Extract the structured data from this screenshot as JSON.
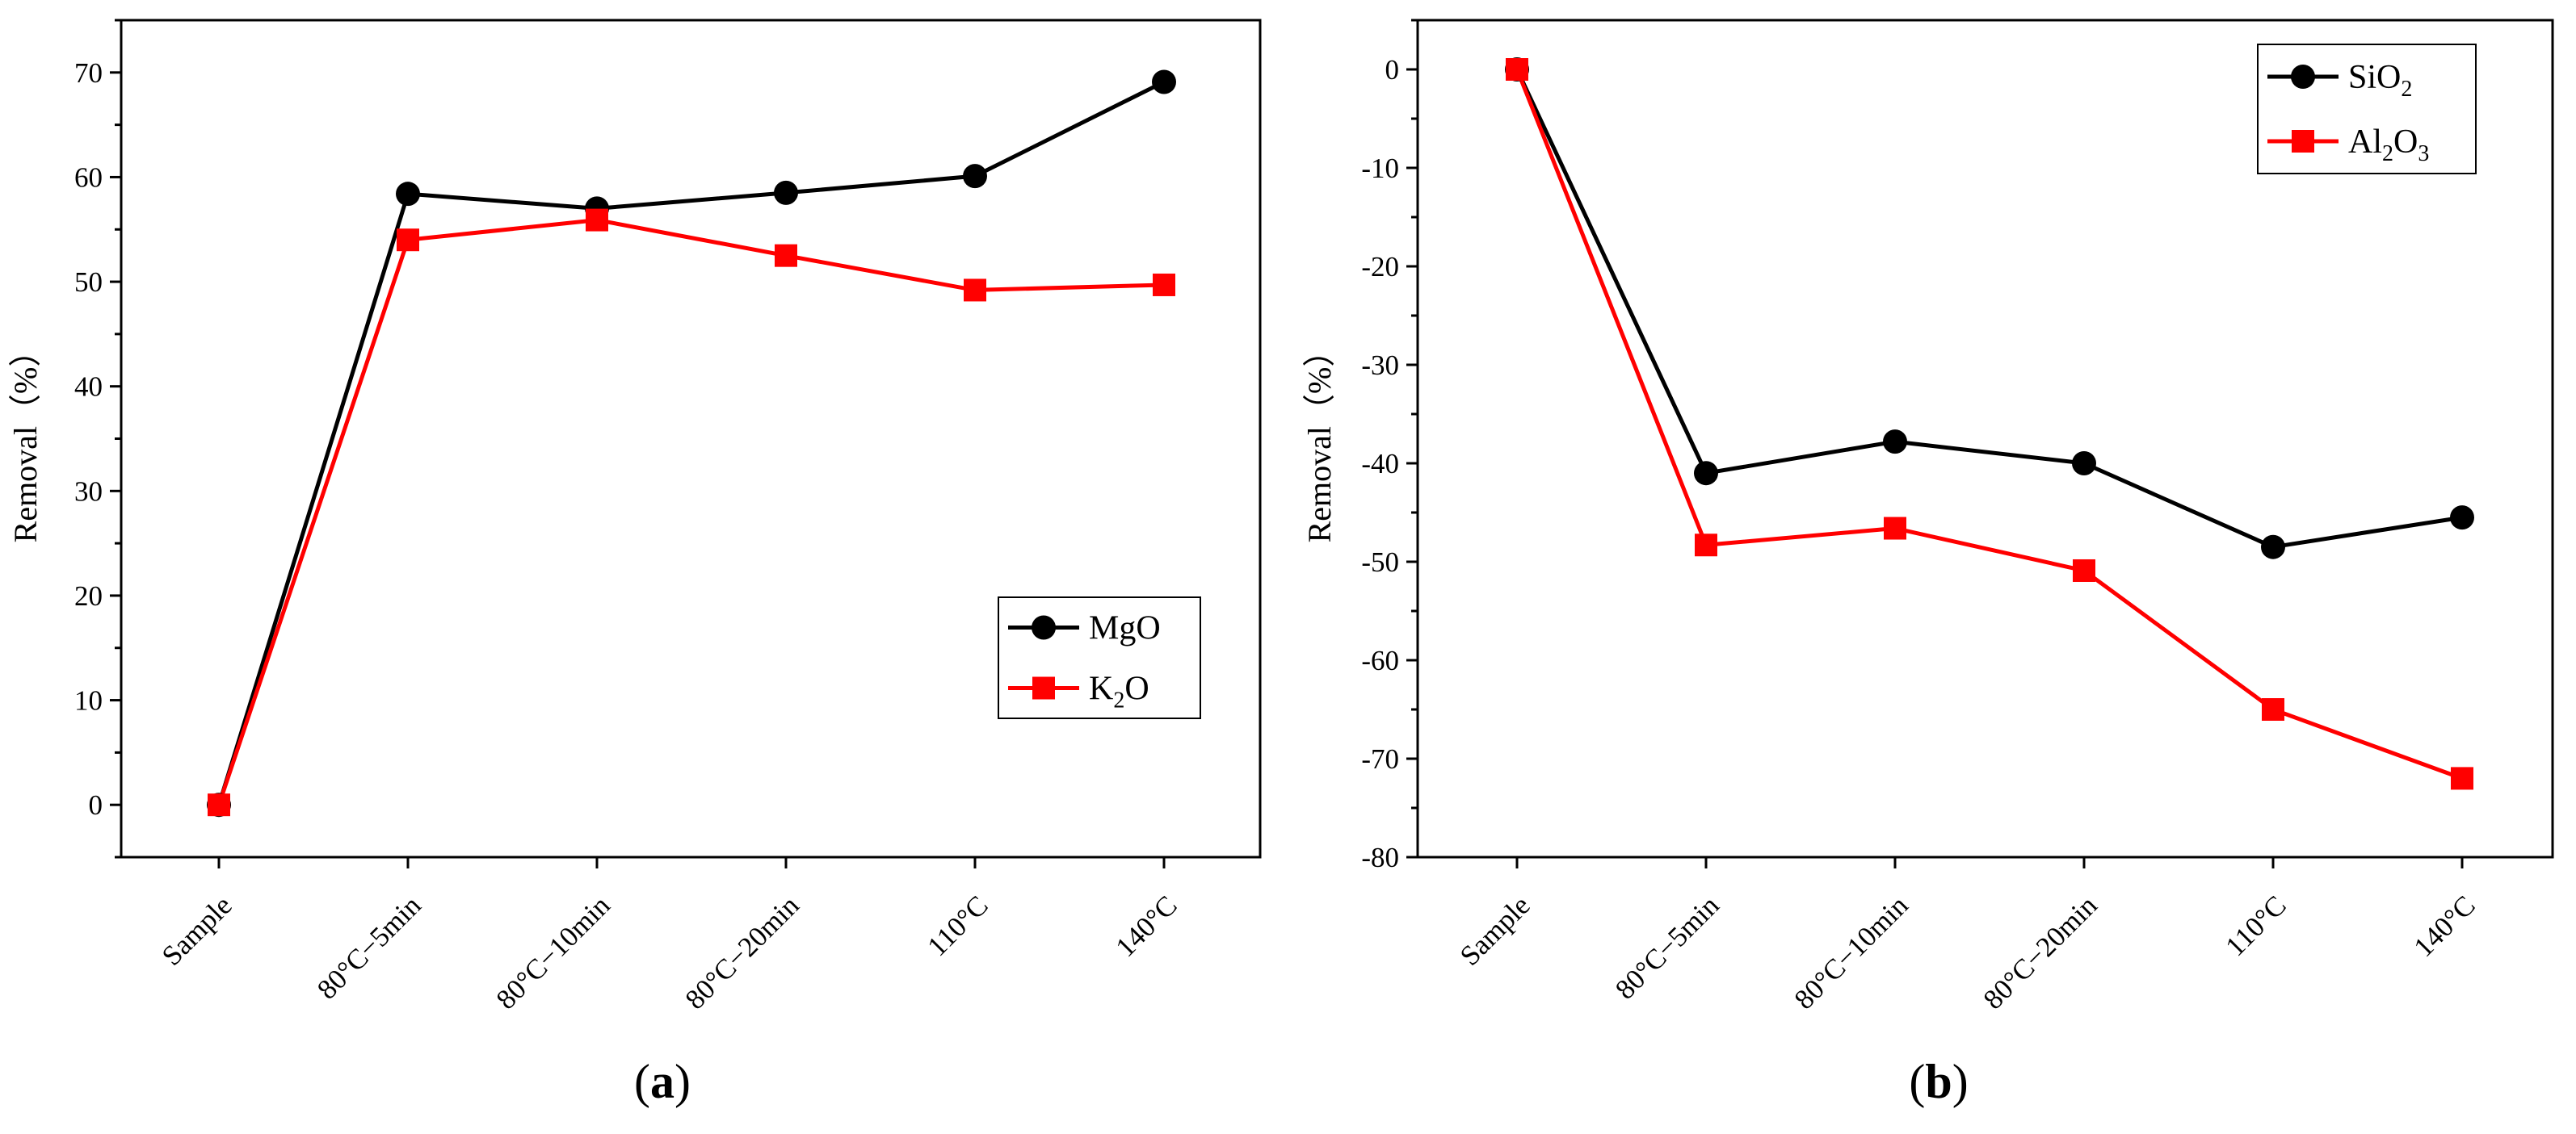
{
  "chart_data": [
    {
      "panel_label": "(a)",
      "panel_letter": "a",
      "type": "line",
      "title": "",
      "xlabel": "",
      "ylabel": "Removal（%）",
      "categories": [
        "Sample",
        "80°C−5min",
        "80°C−10min",
        "80°C−20min",
        "110°C",
        "140°C"
      ],
      "ylim": [
        -5,
        75
      ],
      "yticks": [
        0,
        10,
        20,
        30,
        40,
        50,
        60,
        70
      ],
      "grid": false,
      "legend_position": "center-right",
      "series": [
        {
          "name": "MgO",
          "name_parts": [
            {
              "text": "MgO",
              "sub": false
            }
          ],
          "marker": "circle",
          "color": "#000000",
          "values": [
            0,
            58.4,
            57.0,
            58.5,
            60.1,
            69.1
          ]
        },
        {
          "name": "K2O",
          "name_parts": [
            {
              "text": "K",
              "sub": false
            },
            {
              "text": "2",
              "sub": true
            },
            {
              "text": "O",
              "sub": false
            }
          ],
          "marker": "square",
          "color": "#ff0000",
          "values": [
            0,
            54.0,
            55.9,
            52.5,
            49.2,
            49.7
          ]
        }
      ]
    },
    {
      "panel_label": "(b)",
      "panel_letter": "b",
      "type": "line",
      "title": "",
      "xlabel": "",
      "ylabel": "Removal（%）",
      "categories": [
        "Sample",
        "80°C−5min",
        "80°C−10min",
        "80°C−20min",
        "110°C",
        "140°C"
      ],
      "ylim": [
        -80,
        5
      ],
      "yticks": [
        0,
        -10,
        -20,
        -30,
        -40,
        -50,
        -60,
        -70,
        -80
      ],
      "grid": false,
      "legend_position": "top-right",
      "series": [
        {
          "name": "SiO2",
          "name_parts": [
            {
              "text": "SiO",
              "sub": false
            },
            {
              "text": "2",
              "sub": true
            }
          ],
          "marker": "circle",
          "color": "#000000",
          "values": [
            0,
            -41.0,
            -37.8,
            -40.0,
            -48.5,
            -45.5
          ]
        },
        {
          "name": "Al2O3",
          "name_parts": [
            {
              "text": "Al",
              "sub": false
            },
            {
              "text": "2",
              "sub": true
            },
            {
              "text": "O",
              "sub": false
            },
            {
              "text": "3",
              "sub": true
            }
          ],
          "marker": "square",
          "color": "#ff0000",
          "values": [
            0,
            -48.3,
            -46.6,
            -50.9,
            -65.0,
            -72.0
          ]
        }
      ]
    }
  ]
}
